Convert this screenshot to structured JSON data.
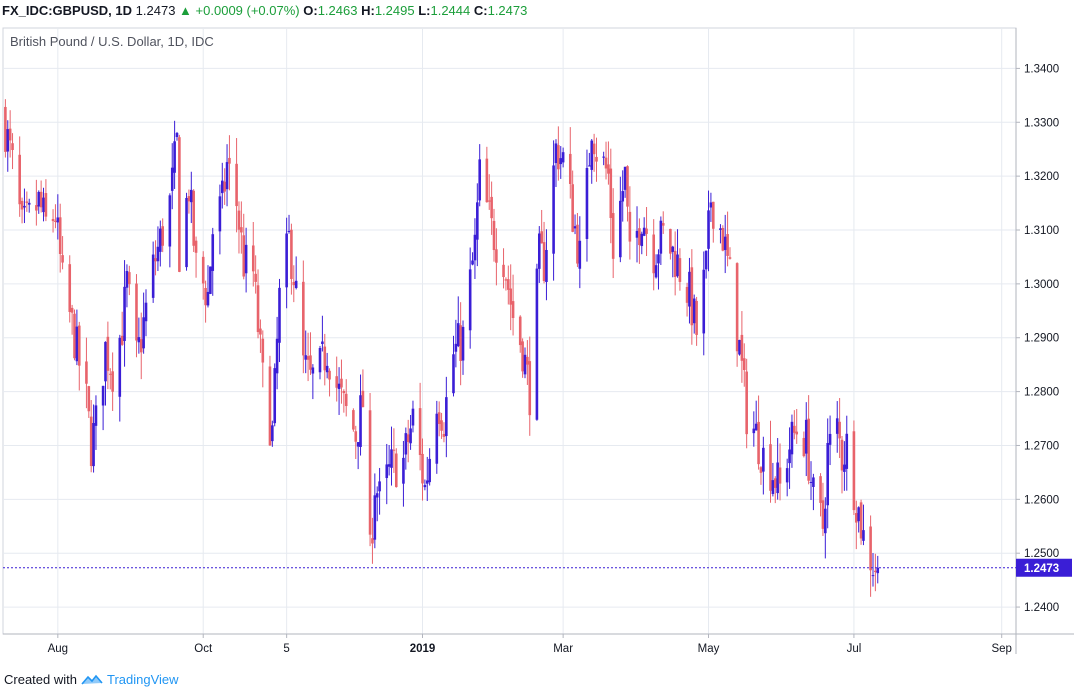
{
  "header": {
    "symbol": "FX_IDC:GBPUSD, 1D",
    "last": "1.2473",
    "change_arrow": "▲",
    "change": "+0.0009 (+0.07%)",
    "o_label": "O:",
    "o_value": "1.2463",
    "h_label": "H:",
    "h_value": "1.2495",
    "l_label": "L:",
    "l_value": "1.2444",
    "c_label": "C:",
    "c_value": "1.2473"
  },
  "footer": {
    "created_with": "Created with",
    "brand": "TradingView"
  },
  "colors": {
    "up": "#3a1ed6",
    "down": "#e8636b",
    "grid": "#e6eaf0",
    "last_line": "#3a1ed6"
  },
  "chart_data": {
    "type": "candlestick",
    "title": "British Pound / U.S. Dollar, 1D, IDC",
    "ylim": [
      1.235,
      1.3475
    ],
    "y_ticks": [
      "1.3400",
      "1.3300",
      "1.3200",
      "1.3100",
      "1.3000",
      "1.2900",
      "1.2800",
      "1.2700",
      "1.2600",
      "1.2500",
      "1.2400"
    ],
    "x_ticks": [
      {
        "label": "Aug",
        "date": "2018-08-01",
        "bold": false
      },
      {
        "label": "Oct",
        "date": "2018-10-01",
        "bold": false
      },
      {
        "label": "5",
        "date": "2018-11-05",
        "bold": false
      },
      {
        "label": "2019",
        "date": "2019-01-01",
        "bold": true
      },
      {
        "label": "Mar",
        "date": "2019-03-01",
        "bold": false
      },
      {
        "label": "May",
        "date": "2019-05-01",
        "bold": false
      },
      {
        "label": "Jul",
        "date": "2019-07-01",
        "bold": false
      },
      {
        "label": "Sep",
        "date": "2019-09-01",
        "bold": false
      }
    ],
    "x_range": [
      "2018-07-09",
      "2019-09-07"
    ],
    "last_price": "1.2473",
    "close_path": [
      [
        "2018-07-10",
        1.329
      ],
      [
        "2018-07-13",
        1.322
      ],
      [
        "2018-07-17",
        1.31
      ],
      [
        "2018-07-20",
        1.312
      ],
      [
        "2018-07-24",
        1.315
      ],
      [
        "2018-07-27",
        1.311
      ],
      [
        "2018-07-31",
        1.313
      ],
      [
        "2018-08-03",
        1.3
      ],
      [
        "2018-08-08",
        1.29
      ],
      [
        "2018-08-13",
        1.278
      ],
      [
        "2018-08-15",
        1.27
      ],
      [
        "2018-08-17",
        1.274
      ],
      [
        "2018-08-21",
        1.288
      ],
      [
        "2018-08-24",
        1.284
      ],
      [
        "2018-08-28",
        1.292
      ],
      [
        "2018-08-30",
        1.3
      ],
      [
        "2018-09-03",
        1.286
      ],
      [
        "2018-09-05",
        1.29
      ],
      [
        "2018-09-10",
        1.303
      ],
      [
        "2018-09-13",
        1.308
      ],
      [
        "2018-09-17",
        1.315
      ],
      [
        "2018-09-20",
        1.326
      ],
      [
        "2018-09-21",
        1.306
      ],
      [
        "2018-09-25",
        1.318
      ],
      [
        "2018-09-28",
        1.303
      ],
      [
        "2018-10-03",
        1.298
      ],
      [
        "2018-10-05",
        1.31
      ],
      [
        "2018-10-09",
        1.315
      ],
      [
        "2018-10-11",
        1.322
      ],
      [
        "2018-10-15",
        1.315
      ],
      [
        "2018-10-18",
        1.304
      ],
      [
        "2018-10-22",
        1.302
      ],
      [
        "2018-10-26",
        1.282
      ],
      [
        "2018-10-30",
        1.272
      ],
      [
        "2018-11-02",
        1.297
      ],
      [
        "2018-11-06",
        1.308
      ],
      [
        "2018-11-08",
        1.302
      ],
      [
        "2018-11-12",
        1.285
      ],
      [
        "2018-11-15",
        1.282
      ],
      [
        "2018-11-19",
        1.284
      ],
      [
        "2018-11-22",
        1.288
      ],
      [
        "2018-11-26",
        1.281
      ],
      [
        "2018-11-29",
        1.277
      ],
      [
        "2018-12-04",
        1.272
      ],
      [
        "2018-12-07",
        1.278
      ],
      [
        "2018-12-10",
        1.249
      ],
      [
        "2018-12-12",
        1.263
      ],
      [
        "2018-12-14",
        1.26
      ],
      [
        "2018-12-19",
        1.266
      ],
      [
        "2018-12-24",
        1.267
      ],
      [
        "2018-12-28",
        1.275
      ],
      [
        "2019-01-02",
        1.262
      ],
      [
        "2019-01-03",
        1.265
      ],
      [
        "2019-01-07",
        1.279
      ],
      [
        "2019-01-10",
        1.275
      ],
      [
        "2019-01-14",
        1.287
      ],
      [
        "2019-01-18",
        1.29
      ],
      [
        "2019-01-23",
        1.307
      ],
      [
        "2019-01-25",
        1.32
      ],
      [
        "2019-01-30",
        1.31
      ],
      [
        "2019-02-04",
        1.305
      ],
      [
        "2019-02-08",
        1.294
      ],
      [
        "2019-02-12",
        1.288
      ],
      [
        "2019-02-15",
        1.28
      ],
      [
        "2019-02-19",
        1.305
      ],
      [
        "2019-02-21",
        1.304
      ],
      [
        "2019-02-26",
        1.325
      ],
      [
        "2019-03-01",
        1.323
      ],
      [
        "2019-03-05",
        1.313
      ],
      [
        "2019-03-08",
        1.305
      ],
      [
        "2019-03-11",
        1.318
      ],
      [
        "2019-03-13",
        1.33
      ],
      [
        "2019-03-15",
        1.325
      ],
      [
        "2019-03-20",
        1.32
      ],
      [
        "2019-03-22",
        1.307
      ],
      [
        "2019-03-27",
        1.32
      ],
      [
        "2019-03-29",
        1.304
      ],
      [
        "2019-04-03",
        1.313
      ],
      [
        "2019-04-08",
        1.306
      ],
      [
        "2019-04-12",
        1.309
      ],
      [
        "2019-04-17",
        1.305
      ],
      [
        "2019-04-23",
        1.298
      ],
      [
        "2019-04-26",
        1.291
      ],
      [
        "2019-04-30",
        1.303
      ],
      [
        "2019-05-02",
        1.316
      ],
      [
        "2019-05-07",
        1.309
      ],
      [
        "2019-05-10",
        1.301
      ],
      [
        "2019-05-14",
        1.288
      ],
      [
        "2019-05-17",
        1.276
      ],
      [
        "2019-05-21",
        1.272
      ],
      [
        "2019-05-24",
        1.268
      ],
      [
        "2019-05-28",
        1.265
      ],
      [
        "2019-05-31",
        1.262
      ],
      [
        "2019-06-04",
        1.27
      ],
      [
        "2019-06-07",
        1.273
      ],
      [
        "2019-06-11",
        1.271
      ],
      [
        "2019-06-14",
        1.26
      ],
      [
        "2019-06-18",
        1.255
      ],
      [
        "2019-06-20",
        1.269
      ],
      [
        "2019-06-24",
        1.273
      ],
      [
        "2019-06-26",
        1.268
      ],
      [
        "2019-06-28",
        1.27
      ],
      [
        "2019-07-02",
        1.26
      ],
      [
        "2019-07-05",
        1.253
      ],
      [
        "2019-07-09",
        1.248
      ],
      [
        "2019-07-11",
        1.2473
      ]
    ]
  }
}
